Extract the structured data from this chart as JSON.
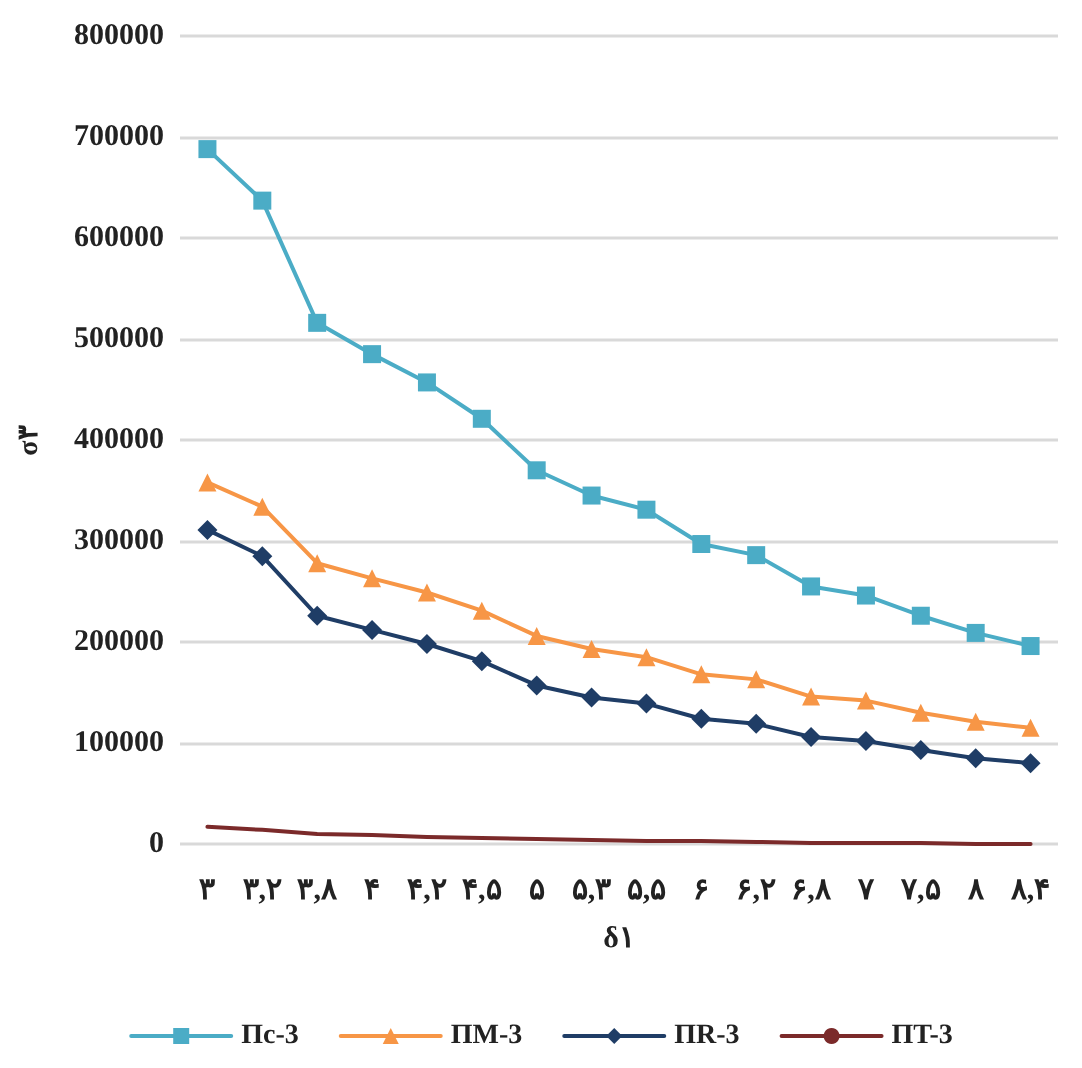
{
  "chart_data": {
    "type": "line",
    "xlabel": "δ۱",
    "ylabel": "σ۳",
    "categories": [
      "۳",
      "۳,۲",
      "۳,۸",
      "۴",
      "۴,۲",
      "۴,۵",
      "۵",
      "۵,۳",
      "۵,۵",
      "۶",
      "۶,۲",
      "۶,۸",
      "۷",
      "۷,۵",
      "۸",
      "۸,۴"
    ],
    "series": [
      {
        "name": "Πc-3",
        "color": "#4bacc6",
        "marker": "square",
        "values": [
          688000,
          637000,
          516000,
          485000,
          457000,
          421000,
          370000,
          345000,
          331000,
          297000,
          286000,
          255000,
          246000,
          226000,
          209000,
          196000
        ]
      },
      {
        "name": "ΠM-3",
        "color": "#f79646",
        "marker": "triangle",
        "values": [
          358000,
          334000,
          278000,
          263000,
          249000,
          231000,
          206000,
          193000,
          185000,
          168000,
          163000,
          146000,
          142000,
          130000,
          121000,
          115000
        ]
      },
      {
        "name": "ΠR-3",
        "color": "#1f3d66",
        "marker": "diamond",
        "values": [
          311000,
          285000,
          226000,
          212000,
          198000,
          181000,
          157000,
          145000,
          139000,
          124000,
          119000,
          106000,
          102000,
          93000,
          85000,
          80000
        ]
      },
      {
        "name": "ΠT-3",
        "color": "#7b2a2a",
        "marker": "none",
        "values": [
          17000,
          14000,
          10000,
          9000,
          7000,
          6000,
          5000,
          4000,
          3000,
          3000,
          2000,
          1000,
          1000,
          1000,
          0,
          0
        ]
      }
    ],
    "ylim": [
      0,
      800000
    ],
    "yticks": [
      0,
      100000,
      200000,
      300000,
      400000,
      500000,
      600000,
      700000,
      800000
    ],
    "grid": "y",
    "legend": "bottom"
  }
}
